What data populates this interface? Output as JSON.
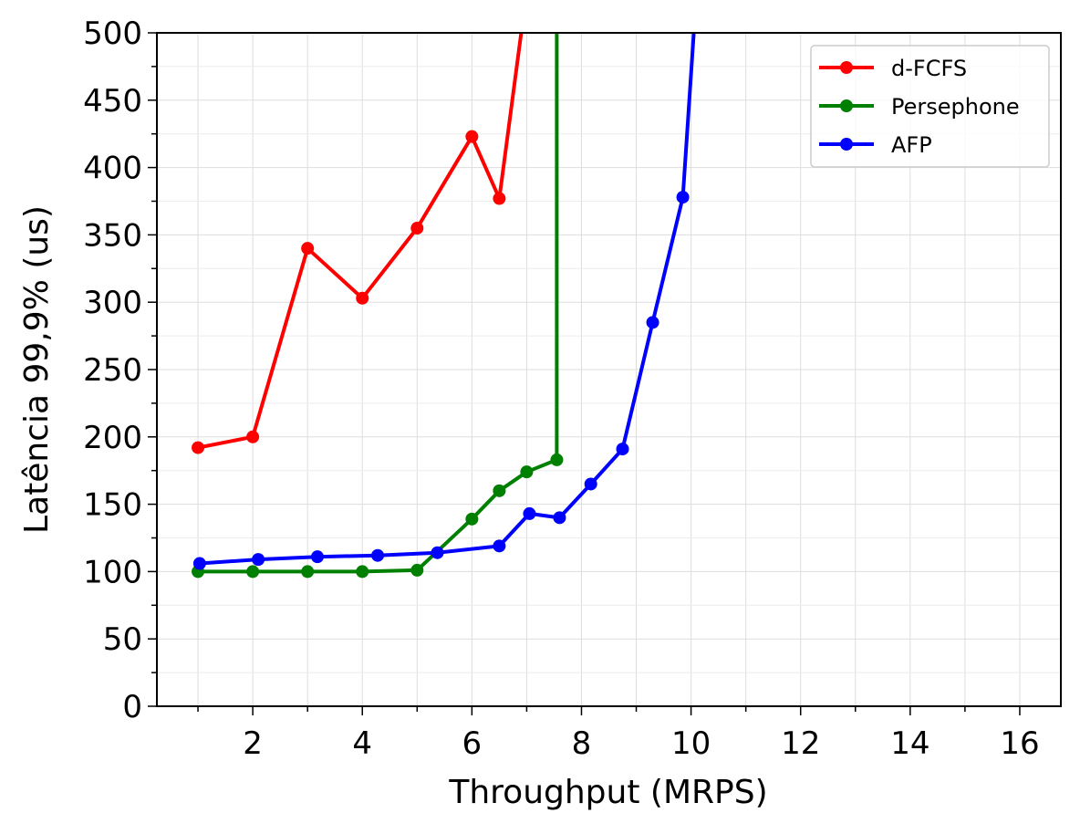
{
  "chart_data": {
    "type": "line",
    "title": "",
    "xlabel": "Throughput (MRPS)",
    "ylabel": "Latência 99,9% (us)",
    "xlim": [
      0.25,
      16.75
    ],
    "ylim": [
      0,
      500
    ],
    "xticks": [
      2,
      4,
      6,
      8,
      10,
      12,
      14,
      16
    ],
    "yticks": [
      0,
      50,
      100,
      150,
      200,
      250,
      300,
      350,
      400,
      450,
      500
    ],
    "grid": true,
    "legend": "top-right",
    "series": [
      {
        "name": "d-FCFS",
        "color": "#ff0000",
        "x": [
          1.0,
          2.0,
          3.0,
          4.0,
          5.0,
          6.0,
          6.5,
          6.9,
          7.0
        ],
        "y": [
          192,
          200,
          340,
          303,
          355,
          423,
          377,
          500,
          550
        ],
        "markers": [
          true,
          true,
          true,
          true,
          true,
          true,
          true,
          false,
          false
        ]
      },
      {
        "name": "Persephone",
        "color": "#008000",
        "x": [
          1.0,
          2.0,
          3.0,
          4.0,
          5.0,
          6.0,
          6.5,
          7.0,
          7.55,
          7.55
        ],
        "y": [
          100,
          100,
          100,
          100,
          101,
          139,
          160,
          174,
          183,
          550
        ],
        "markers": [
          true,
          true,
          true,
          true,
          true,
          true,
          true,
          true,
          true,
          false
        ]
      },
      {
        "name": "AFP",
        "color": "#0000ff",
        "x": [
          1.03,
          2.1,
          3.18,
          4.28,
          5.37,
          6.5,
          7.05,
          7.6,
          8.17,
          8.75,
          9.3,
          9.85,
          10.05,
          10.15
        ],
        "y": [
          106,
          109,
          111,
          112,
          114,
          119,
          143,
          140,
          165,
          191,
          285,
          378,
          500,
          550
        ],
        "markers": [
          true,
          true,
          true,
          true,
          true,
          true,
          true,
          true,
          true,
          true,
          true,
          true,
          false,
          false
        ]
      }
    ]
  }
}
